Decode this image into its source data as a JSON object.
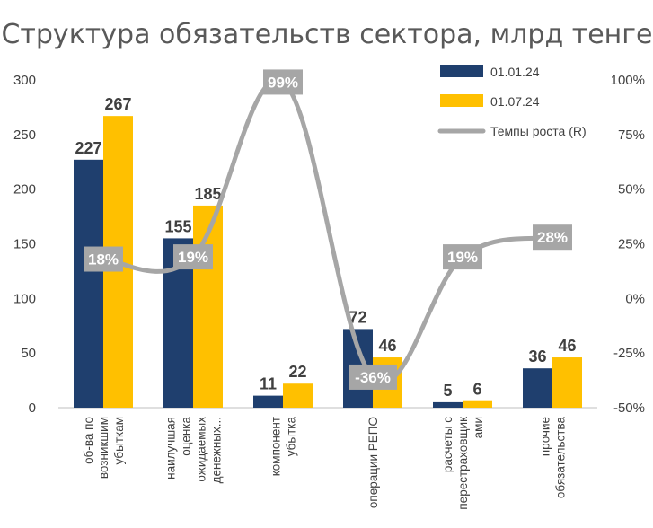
{
  "chart_data": {
    "type": "bar",
    "title": "Структура обязательств сектора, млрд тенге",
    "categories": [
      [
        "об-ва по",
        "возникшим",
        "убыткам"
      ],
      [
        "наилучшая",
        "оценка",
        "ожидаемых",
        "денежных..."
      ],
      [
        "компонент",
        "убытка"
      ],
      [
        "операции РЕПО"
      ],
      [
        "расчеты с",
        "перестраховщик",
        "ами"
      ],
      [
        "прочие",
        "обязательства"
      ]
    ],
    "series": [
      {
        "name": "01.01.24",
        "type": "bar",
        "axis": "left",
        "color": "#1F3F6E",
        "values": [
          227,
          155,
          11,
          72,
          5,
          36
        ]
      },
      {
        "name": "01.07.24",
        "type": "bar",
        "axis": "left",
        "color": "#FFC000",
        "values": [
          267,
          185,
          22,
          46,
          6,
          46
        ]
      },
      {
        "name": "Темпы роста (R)",
        "type": "line",
        "axis": "right",
        "color": "#A6A6A6",
        "values": [
          18,
          19,
          99,
          -36,
          19,
          28
        ]
      }
    ],
    "line_labels": [
      "18%",
      "19%",
      "99%",
      "-36%",
      "19%",
      "28%"
    ],
    "y_left": {
      "min": 0,
      "max": 300,
      "step": 50,
      "ticks": [
        "0",
        "50",
        "100",
        "150",
        "200",
        "250",
        "300"
      ]
    },
    "y_right": {
      "min": -50,
      "max": 100,
      "step": 25,
      "ticks": [
        "-50%",
        "-25%",
        "0%",
        "25%",
        "50%",
        "75%",
        "100%"
      ]
    },
    "grid": false,
    "legend_position": "top-right"
  }
}
